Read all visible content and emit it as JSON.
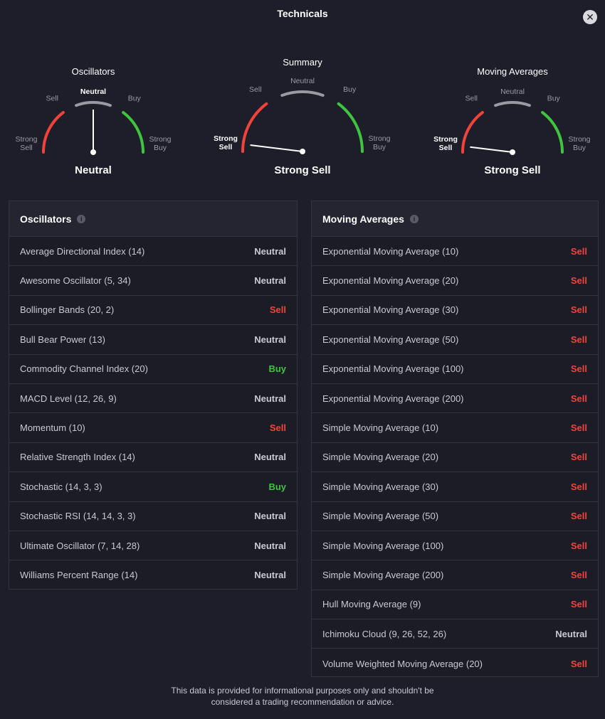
{
  "header": {
    "title": "Technicals"
  },
  "colors": {
    "sell": "#f0443a",
    "buy": "#3ec43e",
    "neutral_arc": "#9a9aa3",
    "needle": "#ffffff"
  },
  "gauges": [
    {
      "id": "oscillators",
      "title": "Oscillators",
      "result": "Neutral",
      "level": "neutral",
      "labels": {
        "strong_sell": [
          "Strong",
          "Sell"
        ],
        "sell": "Sell",
        "neutral": "Neutral",
        "buy": "Buy",
        "strong_buy": [
          "Strong",
          "Buy"
        ]
      }
    },
    {
      "id": "summary",
      "title": "Summary",
      "result": "Strong Sell",
      "level": "strong_sell",
      "labels": {
        "strong_sell": [
          "Strong",
          "Sell"
        ],
        "sell": "Sell",
        "neutral": "Neutral",
        "buy": "Buy",
        "strong_buy": [
          "Strong",
          "Buy"
        ]
      }
    },
    {
      "id": "moving-averages",
      "title": "Moving Averages",
      "result": "Strong Sell",
      "level": "strong_sell",
      "labels": {
        "strong_sell": [
          "Strong",
          "Sell"
        ],
        "sell": "Sell",
        "neutral": "Neutral",
        "buy": "Buy",
        "strong_buy": [
          "Strong",
          "Buy"
        ]
      }
    }
  ],
  "oscillators": {
    "title": "Oscillators",
    "rows": [
      {
        "name": "Average Directional Index (14)",
        "action": "Neutral",
        "type": "neutral"
      },
      {
        "name": "Awesome Oscillator (5, 34)",
        "action": "Neutral",
        "type": "neutral"
      },
      {
        "name": "Bollinger Bands (20, 2)",
        "action": "Sell",
        "type": "sell"
      },
      {
        "name": "Bull Bear Power (13)",
        "action": "Neutral",
        "type": "neutral"
      },
      {
        "name": "Commodity Channel Index (20)",
        "action": "Buy",
        "type": "buy"
      },
      {
        "name": "MACD Level (12, 26, 9)",
        "action": "Neutral",
        "type": "neutral"
      },
      {
        "name": "Momentum (10)",
        "action": "Sell",
        "type": "sell"
      },
      {
        "name": "Relative Strength Index (14)",
        "action": "Neutral",
        "type": "neutral"
      },
      {
        "name": "Stochastic (14, 3, 3)",
        "action": "Buy",
        "type": "buy"
      },
      {
        "name": "Stochastic RSI (14, 14, 3, 3)",
        "action": "Neutral",
        "type": "neutral"
      },
      {
        "name": "Ultimate Oscillator (7, 14, 28)",
        "action": "Neutral",
        "type": "neutral"
      },
      {
        "name": "Williams Percent Range (14)",
        "action": "Neutral",
        "type": "neutral"
      }
    ]
  },
  "moving_averages": {
    "title": "Moving Averages",
    "rows": [
      {
        "name": "Exponential Moving Average (10)",
        "action": "Sell",
        "type": "sell"
      },
      {
        "name": "Exponential Moving Average (20)",
        "action": "Sell",
        "type": "sell"
      },
      {
        "name": "Exponential Moving Average (30)",
        "action": "Sell",
        "type": "sell"
      },
      {
        "name": "Exponential Moving Average (50)",
        "action": "Sell",
        "type": "sell"
      },
      {
        "name": "Exponential Moving Average (100)",
        "action": "Sell",
        "type": "sell"
      },
      {
        "name": "Exponential Moving Average (200)",
        "action": "Sell",
        "type": "sell"
      },
      {
        "name": "Simple Moving Average (10)",
        "action": "Sell",
        "type": "sell"
      },
      {
        "name": "Simple Moving Average (20)",
        "action": "Sell",
        "type": "sell"
      },
      {
        "name": "Simple Moving Average (30)",
        "action": "Sell",
        "type": "sell"
      },
      {
        "name": "Simple Moving Average (50)",
        "action": "Sell",
        "type": "sell"
      },
      {
        "name": "Simple Moving Average (100)",
        "action": "Sell",
        "type": "sell"
      },
      {
        "name": "Simple Moving Average (200)",
        "action": "Sell",
        "type": "sell"
      },
      {
        "name": "Hull Moving Average (9)",
        "action": "Sell",
        "type": "sell"
      },
      {
        "name": "Ichimoku Cloud (9, 26, 52, 26)",
        "action": "Neutral",
        "type": "neutral"
      },
      {
        "name": "Volume Weighted Moving Average (20)",
        "action": "Sell",
        "type": "sell"
      }
    ]
  },
  "footer": {
    "line1": "This data is provided for informational purposes only and shouldn't be",
    "line2": "considered a trading recommendation or advice."
  }
}
